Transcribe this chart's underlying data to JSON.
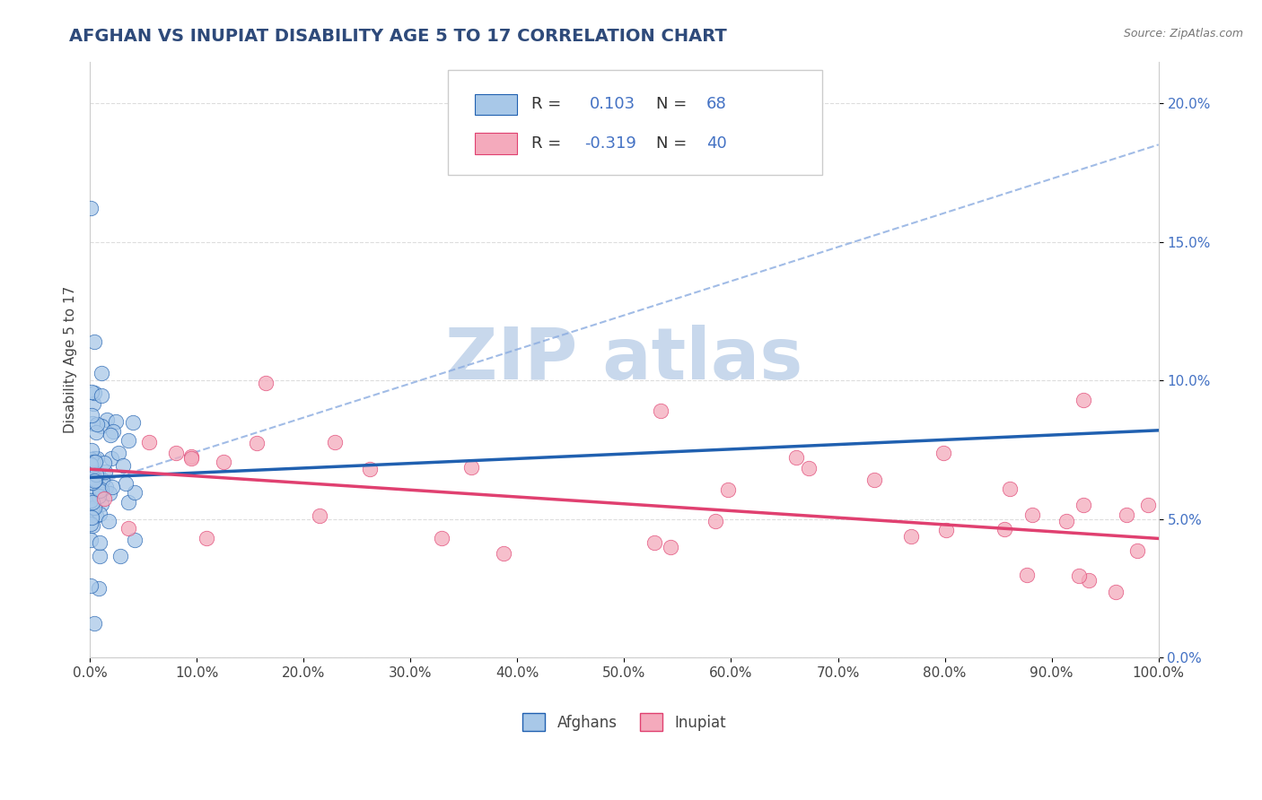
{
  "title": "AFGHAN VS INUPIAT DISABILITY AGE 5 TO 17 CORRELATION CHART",
  "source": "Source: ZipAtlas.com",
  "ylabel": "Disability Age 5 to 17",
  "xlim": [
    0.0,
    1.0
  ],
  "ylim": [
    0.0,
    0.215
  ],
  "xticks": [
    0.0,
    0.1,
    0.2,
    0.3,
    0.4,
    0.5,
    0.6,
    0.7,
    0.8,
    0.9,
    1.0
  ],
  "xticklabels": [
    "0.0%",
    "10.0%",
    "20.0%",
    "30.0%",
    "40.0%",
    "50.0%",
    "60.0%",
    "70.0%",
    "80.0%",
    "90.0%",
    "100.0%"
  ],
  "yticks": [
    0.0,
    0.05,
    0.1,
    0.15,
    0.2
  ],
  "yticklabels": [
    "0.0%",
    "5.0%",
    "10.0%",
    "15.0%",
    "20.0%"
  ],
  "afghan_R": 0.103,
  "afghan_N": 68,
  "inupiat_R": -0.319,
  "inupiat_N": 40,
  "afghan_color": "#A8C8E8",
  "inupiat_color": "#F4AABC",
  "afghan_line_color": "#2060B0",
  "inupiat_line_color": "#E04070",
  "background_color": "#FFFFFF",
  "title_color": "#2E4A7A",
  "yaxis_color": "#4472C4",
  "legend_R_N_color": "#4472C4",
  "legend_label_color": "#333333",
  "grid_color": "#DDDDDD",
  "watermark_color": "#C8D8EC"
}
